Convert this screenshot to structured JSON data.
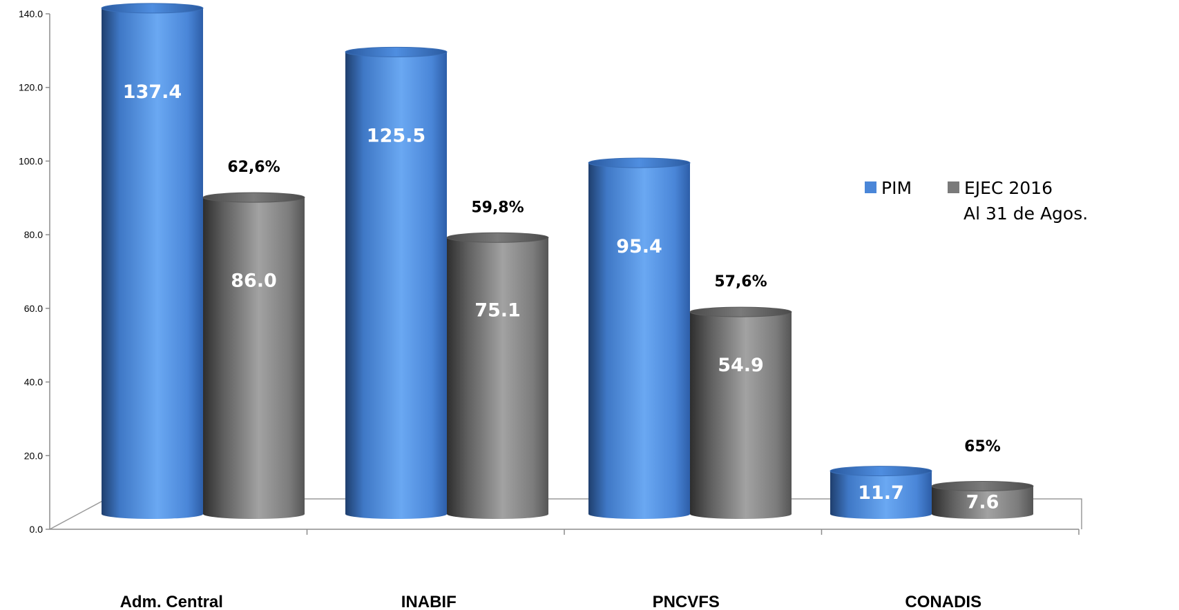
{
  "chart_data": {
    "type": "bar",
    "categories": [
      "Adm. Central",
      "INABIF",
      "PNCVFS",
      "CONADIS"
    ],
    "series": [
      {
        "name": "PIM",
        "values": [
          137.4,
          125.5,
          95.4,
          11.7
        ],
        "labels": [
          "137.4",
          "125.5",
          "95.4",
          "11.7"
        ],
        "color": "#4a86d8"
      },
      {
        "name": "EJEC 2016",
        "values": [
          86.0,
          75.1,
          54.9,
          7.6
        ],
        "labels": [
          "86.0",
          "75.1",
          "54.9",
          "7.6"
        ],
        "color": "#7a7a7a"
      }
    ],
    "percentages": [
      "62,6%",
      "59,8%",
      "57,6%",
      "65%"
    ],
    "legend_note": "Al 31 de Agos.",
    "yticks": [
      "0.0",
      "20.0",
      "40.0",
      "60.0",
      "80.0",
      "100.0",
      "120.0",
      "140.0"
    ],
    "ylim": [
      0,
      140
    ],
    "grid": false,
    "legend_position": "right",
    "title": "",
    "xlabel": "",
    "ylabel": ""
  }
}
